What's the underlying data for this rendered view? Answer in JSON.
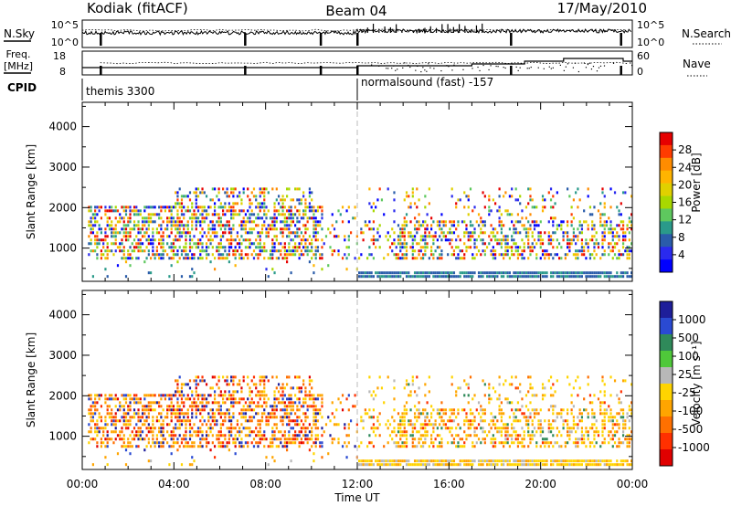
{
  "header": {
    "station": "Kodiak (fitACF)",
    "beam": "Beam 04",
    "date": "17/May/2010"
  },
  "status_panels": {
    "nsky_label": "N.Sky",
    "nsky_ticks": [
      "10^5",
      "10^0"
    ],
    "nsky_right_ticks": [
      "10^5",
      "10^0"
    ],
    "nsearch_label": "N.Search",
    "freq_label_line1": "Freq.",
    "freq_label_line2": "[MHz]",
    "freq_ticks": [
      "18",
      "8"
    ],
    "nave_ticks": [
      "60",
      "0"
    ],
    "nave_label": "Nave",
    "cpid_label": "CPID",
    "cpid_segments": [
      {
        "name": "themis 3300",
        "start_hour": 0
      },
      {
        "name": "normalsound (fast) -157",
        "start_hour": 12
      }
    ]
  },
  "colorbars": {
    "power": {
      "title": "Power [dB]",
      "tick_labels": [
        "28",
        "24",
        "20",
        "16",
        "12",
        "8",
        "4"
      ],
      "colors": [
        "#e60000",
        "#ff3c00",
        "#ff8c00",
        "#ffb400",
        "#e0d000",
        "#a8d800",
        "#5ec85e",
        "#2a9a8a",
        "#2a5caa",
        "#2a2aee",
        "#0000ff"
      ]
    },
    "velocity": {
      "title": "Velocity [m s⁻¹]",
      "tick_labels": [
        "1000",
        "500",
        "100",
        "25",
        "-25",
        "-100",
        "-500",
        "-1000"
      ],
      "colors": [
        "#1e1e9a",
        "#2a4ad2",
        "#2f8a5a",
        "#4fc83a",
        "#b8b8b8",
        "#ffd400",
        "#ffa500",
        "#ff7000",
        "#ff3000",
        "#e00000"
      ]
    }
  },
  "chart_data": [
    {
      "type": "heatmap",
      "name": "power",
      "ylabel": "Slant Range [km]",
      "ylim": [
        180,
        4600
      ],
      "yticks": [
        1000,
        2000,
        3000,
        4000
      ],
      "xlim_hours": [
        0,
        24
      ]
    },
    {
      "type": "heatmap",
      "name": "velocity",
      "ylabel": "Slant Range [km]",
      "ylim": [
        180,
        4600
      ],
      "yticks": [
        1000,
        2000,
        3000,
        4000
      ],
      "xlim_hours": [
        0,
        24
      ]
    }
  ],
  "xaxis": {
    "title": "Time UT",
    "tick_labels": [
      "00:00",
      "04:00",
      "08:00",
      "12:00",
      "16:00",
      "20:00",
      "00:00"
    ],
    "tick_hours": [
      0,
      4,
      8,
      12,
      16,
      20,
      24
    ]
  }
}
